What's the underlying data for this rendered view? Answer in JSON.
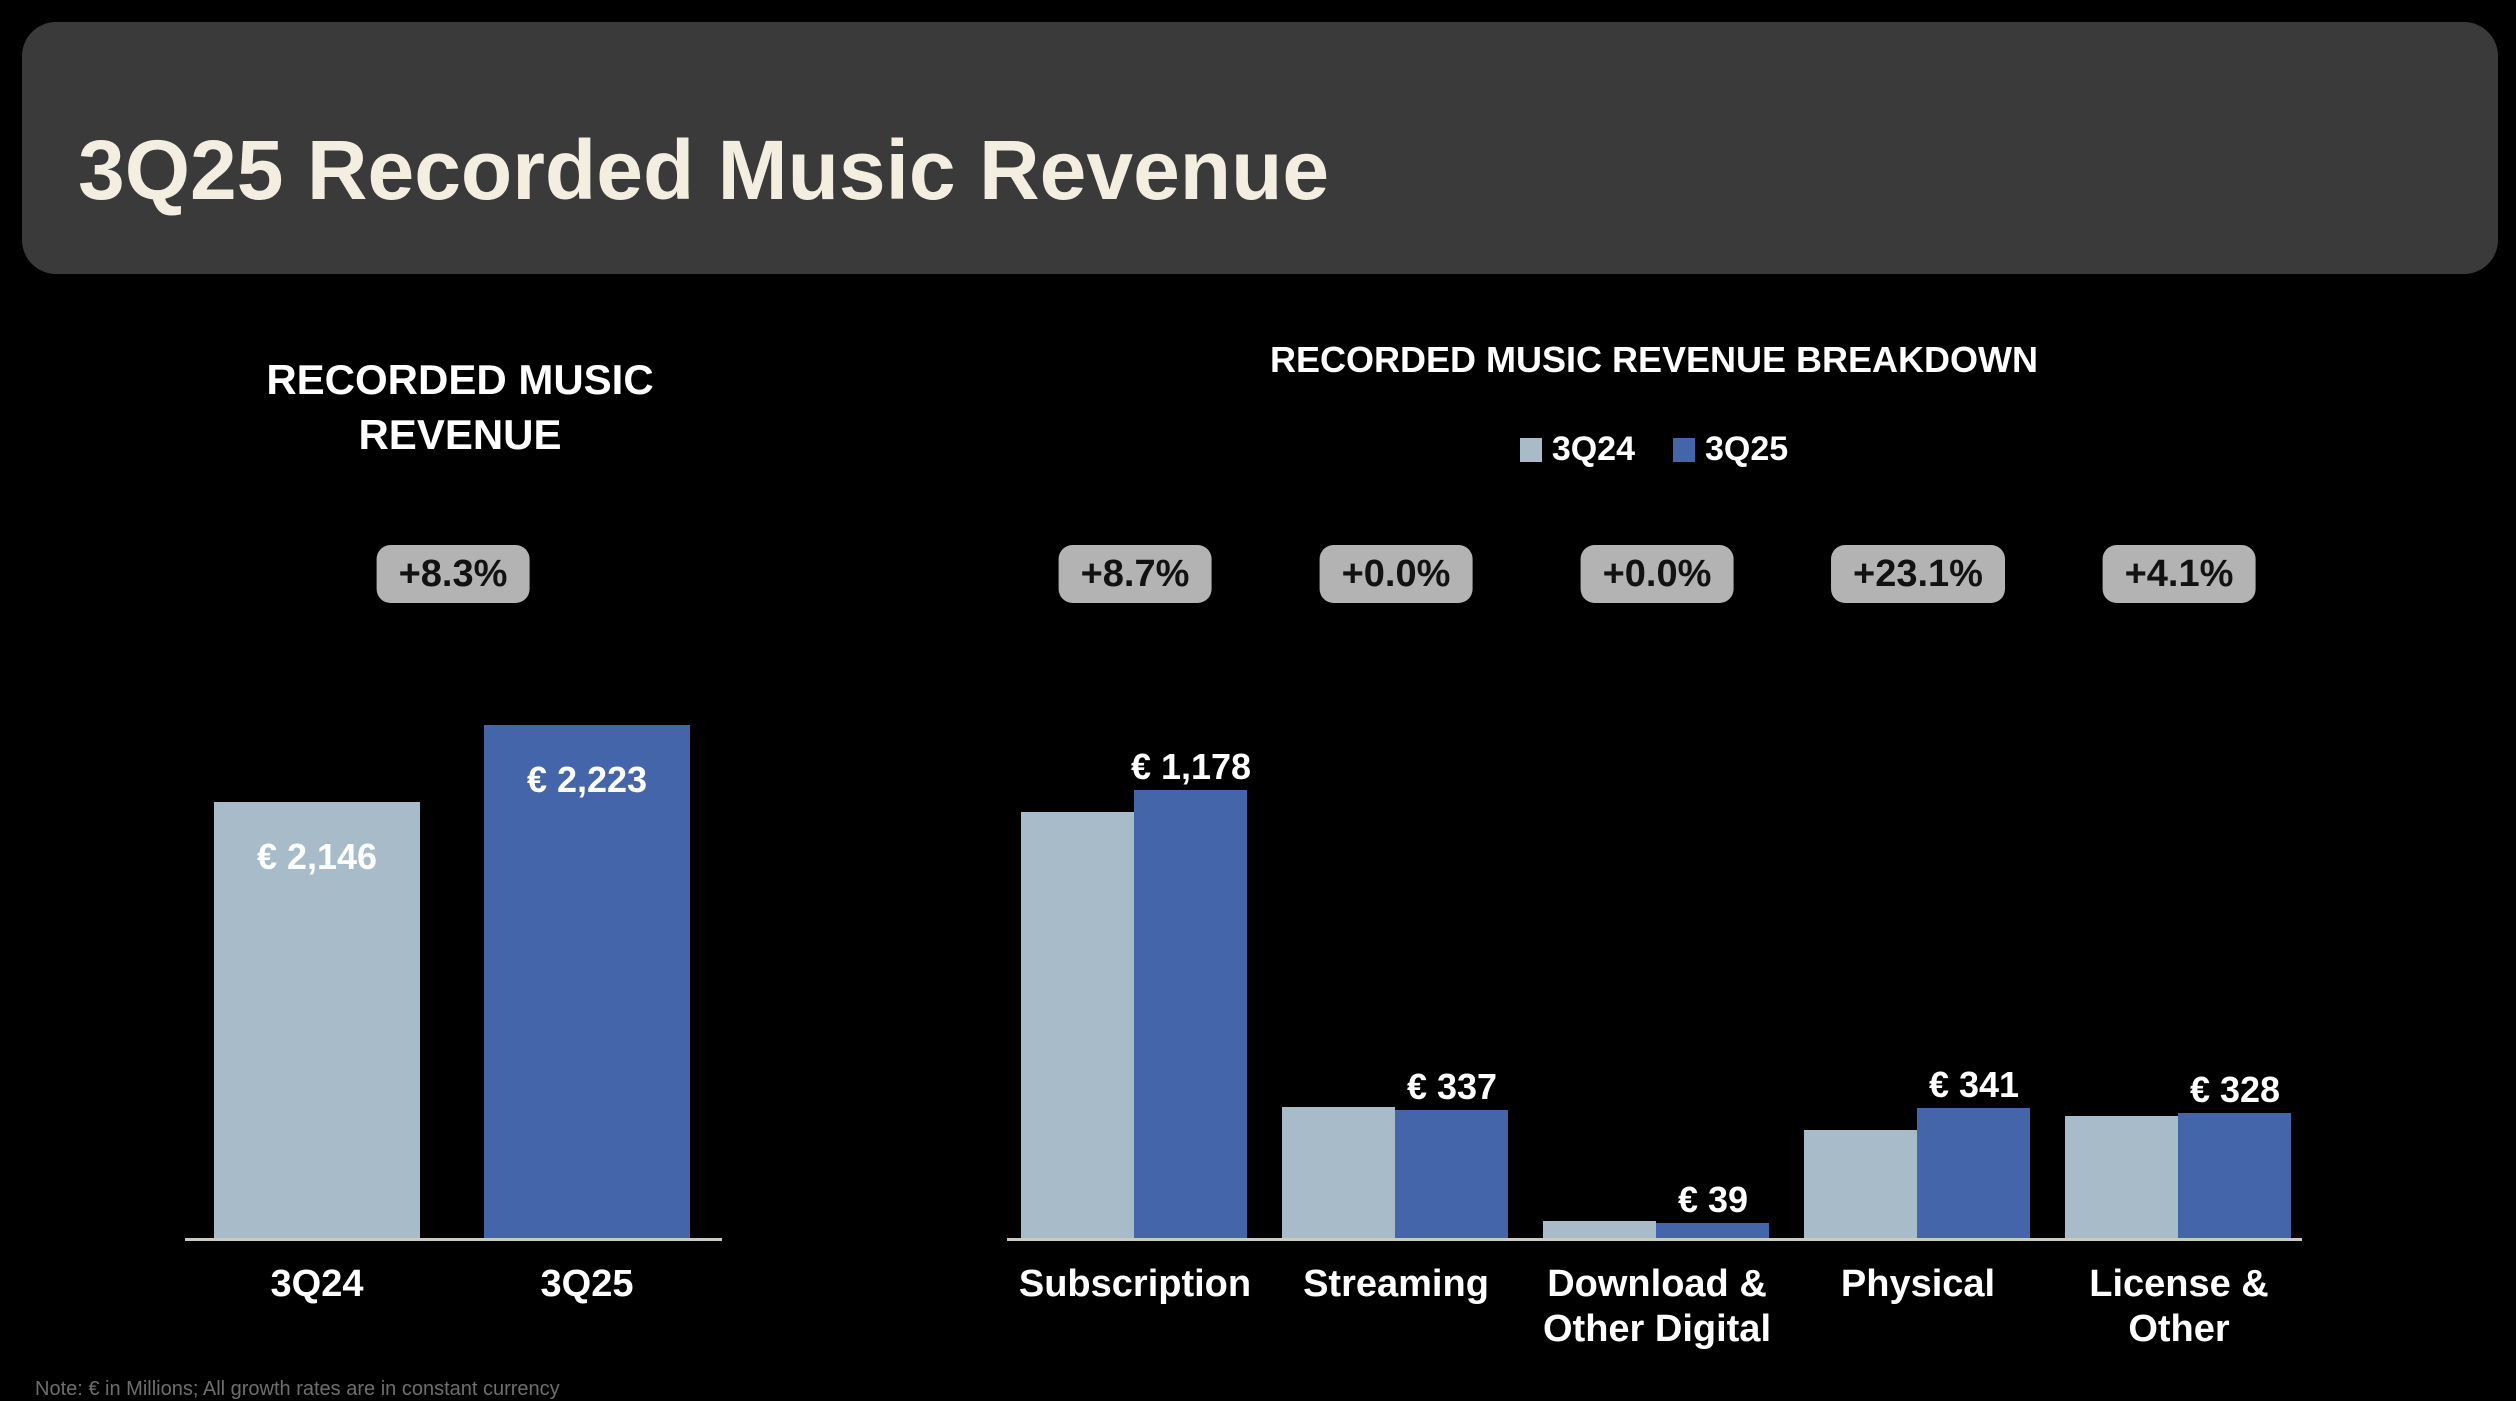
{
  "header": {
    "title": "3Q25 Recorded Music Revenue"
  },
  "footnote": "Note: € in Millions; All growth rates are in constant currency",
  "colors": {
    "background": "#000000",
    "header_bg": "#3a3a3a",
    "header_text": "#f4eee0",
    "bar_3q24": "#a7bbc9",
    "bar_3q25": "#4565ab",
    "badge_bg": "#b3b3b3",
    "badge_text": "#121212",
    "axis_line": "#ccc9c2",
    "value_label": "#ffffff",
    "category_label": "#ffffff",
    "note_text": "#6e6e6e"
  },
  "chart_data": [
    {
      "type": "bar",
      "title": "RECORDED MUSIC REVENUE",
      "unit": "€ millions",
      "growth_badge": "+8.3%",
      "categories": [
        "3Q24",
        "3Q25"
      ],
      "bars": [
        {
          "category": "3Q24",
          "series": "3Q24",
          "value": 2146,
          "value_label": "€ 2,146"
        },
        {
          "category": "3Q25",
          "series": "3Q25",
          "value": 2223,
          "value_label": "€ 2,223"
        }
      ],
      "xlabel": "",
      "ylabel": "",
      "ylim": [
        1710,
        2350
      ],
      "grid": false,
      "legend_position": "none"
    },
    {
      "type": "bar",
      "title": "RECORDED MUSIC REVENUE BREAKDOWN",
      "unit": "€ millions",
      "legend": [
        "3Q24",
        "3Q25"
      ],
      "legend_position": "top",
      "categories": [
        "Subscription",
        "Streaming",
        "Download & Other Digital",
        "Physical",
        "License & Other"
      ],
      "category_lines": [
        [
          "Subscription"
        ],
        [
          "Streaming"
        ],
        [
          "Download &",
          "Other Digital"
        ],
        [
          "Physical"
        ],
        [
          "License &",
          "Other"
        ]
      ],
      "series": [
        {
          "name": "3Q24",
          "values": [
            1120,
            345,
            45,
            285,
            320
          ],
          "estimated_from_bar_heights": true
        },
        {
          "name": "3Q25",
          "values": [
            1178,
            337,
            39,
            341,
            328
          ]
        }
      ],
      "value_labels_3q25": [
        "€ 1,178",
        "€ 337",
        "€ 39",
        "€ 341",
        "€ 328"
      ],
      "growth_badges": [
        "+8.7%",
        "+0.0%",
        "+0.0%",
        "+23.1%",
        "+4.1%"
      ],
      "xlabel": "",
      "ylabel": "",
      "ylim": [
        0,
        1260
      ],
      "grid": false
    }
  ]
}
